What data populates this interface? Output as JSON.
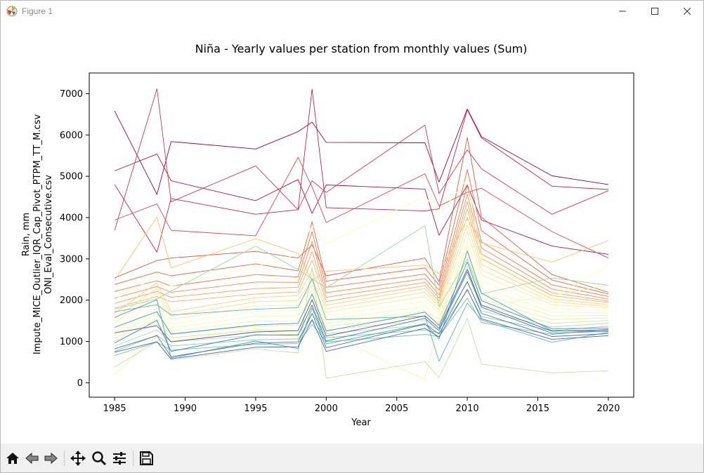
{
  "window": {
    "title": "Figure 1",
    "icon": "matplotlib-icon",
    "controls": [
      "minimize-icon",
      "maximize-icon",
      "close-icon"
    ]
  },
  "toolbar": {
    "buttons": [
      "home-icon",
      "back-icon",
      "forward-icon",
      "pan-icon",
      "zoom-icon",
      "configure-subplots-icon",
      "save-icon"
    ]
  },
  "chart_data": {
    "type": "line",
    "title": "Niña - Yearly values per station from monthly values (Sum)",
    "xlabel": "Year",
    "ylabel": [
      "Rain, mm",
      "Impute_MICE_Outlier_IQR_Cap_Pivot_PTPM_TT_M.csv",
      "ONI_Eval_Consecutive.csv"
    ],
    "x": [
      1985,
      1988,
      1989,
      1995,
      1998,
      1999,
      2000,
      2007,
      2008,
      2010,
      2011,
      2016,
      2020
    ],
    "xlim": [
      1983.2,
      2021.8
    ],
    "ylim": [
      -350,
      7500
    ],
    "xticks": [
      1985,
      1990,
      1995,
      2000,
      2005,
      2010,
      2015,
      2020
    ],
    "yticks": [
      0,
      1000,
      2000,
      3000,
      4000,
      5000,
      6000,
      7000
    ],
    "colormap": "Spectral",
    "grid": false,
    "legend": "none",
    "series": [
      {
        "values": [
          6580,
          4560,
          5840,
          5660,
          6080,
          6310,
          5820,
          5810,
          4860,
          6630,
          5960,
          5010,
          4800
        ]
      },
      {
        "values": [
          5130,
          5540,
          4890,
          4410,
          4920,
          4100,
          4790,
          4690,
          3570,
          4790,
          3940,
          3310,
          3110
        ]
      },
      {
        "values": [
          4800,
          3160,
          4460,
          4080,
          4190,
          7110,
          4240,
          4160,
          4210,
          6610,
          5930,
          4760,
          4680
        ]
      },
      {
        "values": [
          3690,
          7120,
          4380,
          5250,
          4190,
          4890,
          4610,
          6240,
          4580,
          5640,
          5180,
          4080,
          4650
        ]
      },
      {
        "values": [
          3940,
          4330,
          3690,
          3560,
          5460,
          4740,
          3880,
          5060,
          4280,
          4610,
          4710,
          3660,
          3020
        ]
      },
      {
        "values": [
          2540,
          2960,
          3020,
          3180,
          3020,
          3340,
          2590,
          3020,
          2450,
          5940,
          4010,
          2620,
          2190
        ]
      },
      {
        "values": [
          2380,
          2680,
          2590,
          2880,
          2710,
          3900,
          2460,
          2780,
          2360,
          5160,
          3680,
          2490,
          2150
        ]
      },
      {
        "values": [
          2210,
          2470,
          2340,
          2620,
          2560,
          3660,
          2310,
          2630,
          2240,
          4780,
          3410,
          2370,
          2090
        ]
      },
      {
        "values": [
          2050,
          2330,
          2190,
          2440,
          2430,
          3420,
          2180,
          2520,
          2130,
          4560,
          3260,
          2270,
          2030
        ]
      },
      {
        "values": [
          1920,
          2210,
          2070,
          2280,
          2310,
          3180,
          2070,
          2430,
          2050,
          4380,
          3120,
          2180,
          1980
        ]
      },
      {
        "values": [
          1810,
          2090,
          1960,
          2150,
          2200,
          2970,
          1970,
          2350,
          1980,
          4210,
          3010,
          2110,
          1940
        ]
      },
      {
        "values": [
          2480,
          4010,
          2780,
          3490,
          3130,
          2480,
          2700,
          2850,
          2640,
          3970,
          3390,
          2920,
          3440
        ]
      },
      {
        "values": [
          1680,
          2420,
          1720,
          2060,
          2110,
          2710,
          1880,
          2280,
          1910,
          4020,
          2870,
          2030,
          1890
        ]
      },
      {
        "values": [
          1560,
          2290,
          1620,
          1960,
          1990,
          2520,
          1790,
          2190,
          1840,
          3830,
          2740,
          1960,
          1850
        ]
      },
      {
        "values": [
          1450,
          2160,
          1530,
          1860,
          1880,
          2370,
          1710,
          2090,
          1770,
          3650,
          2610,
          1890,
          1810
        ]
      },
      {
        "values": [
          210,
          1140,
          1010,
          1310,
          1090,
          2060,
          1210,
          70,
          1540,
          3310,
          1840,
          2110,
          2360
        ]
      },
      {
        "values": [
          1340,
          1980,
          1420,
          1730,
          1750,
          2240,
          1620,
          1970,
          1700,
          3420,
          2470,
          1800,
          1750
        ]
      },
      {
        "values": [
          2020,
          2570,
          2340,
          2810,
          3110,
          3820,
          3360,
          4520,
          4060,
          4940,
          2980,
          2060,
          2840
        ]
      },
      {
        "values": [
          1240,
          1810,
          1330,
          1610,
          1620,
          2120,
          1530,
          1850,
          1620,
          3210,
          2310,
          1710,
          1690
        ]
      },
      {
        "values": [
          1150,
          1670,
          1250,
          1490,
          1500,
          2010,
          1440,
          1730,
          1540,
          3010,
          2160,
          1620,
          1630
        ]
      },
      {
        "values": [
          1080,
          1540,
          1170,
          1380,
          1390,
          1890,
          1360,
          1620,
          1460,
          2810,
          2020,
          1530,
          1570
        ]
      },
      {
        "values": [
          1010,
          1420,
          1090,
          1270,
          1280,
          1780,
          1280,
          1510,
          1380,
          2620,
          1880,
          1440,
          1510
        ]
      },
      {
        "values": [
          380,
          1000,
          550,
          820,
          720,
          2800,
          110,
          510,
          130,
          1560,
          450,
          240,
          290
        ]
      },
      {
        "values": [
          890,
          1280,
          990,
          1150,
          1170,
          1660,
          1190,
          1400,
          1300,
          2430,
          1740,
          1350,
          1440
        ]
      },
      {
        "values": [
          1780,
          2030,
          2220,
          3310,
          2740,
          2520,
          2300,
          3800,
          1840,
          2980,
          2150,
          2540,
          2360
        ]
      },
      {
        "values": [
          760,
          1150,
          890,
          1040,
          1060,
          1530,
          1090,
          1280,
          1210,
          2240,
          1600,
          1260,
          1370
        ]
      },
      {
        "values": [
          660,
          980,
          790,
          930,
          950,
          1410,
          990,
          1170,
          1120,
          2050,
          1460,
          1170,
          1300
        ]
      },
      {
        "values": [
          1720,
          1890,
          1640,
          1780,
          1820,
          2510,
          1530,
          1610,
          520,
          1930,
          1520,
          980,
          1220
        ]
      },
      {
        "values": [
          1580,
          2010,
          600,
          1010,
          830,
          1810,
          940,
          1430,
          1060,
          3190,
          2170,
          1260,
          1240
        ]
      },
      {
        "values": [
          1340,
          1720,
          1180,
          1400,
          1440,
          2150,
          1250,
          1710,
          1390,
          2920,
          1990,
          1310,
          1320
        ]
      },
      {
        "values": [
          960,
          1510,
          760,
          1160,
          1150,
          1880,
          1010,
          1560,
          1260,
          2690,
          1830,
          1200,
          1250
        ]
      },
      {
        "values": [
          820,
          1140,
          630,
          960,
          990,
          1680,
          850,
          1420,
          1180,
          2450,
          1680,
          1120,
          1190
        ]
      },
      {
        "values": [
          740,
          990,
          580,
          860,
          870,
          1520,
          760,
          1320,
          1110,
          2260,
          1550,
          1050,
          1140
        ]
      },
      {
        "values": [
          1210,
          1380,
          990,
          1230,
          1260,
          2010,
          1130,
          1620,
          1320,
          2750,
          1880,
          1250,
          1280
        ]
      }
    ]
  }
}
